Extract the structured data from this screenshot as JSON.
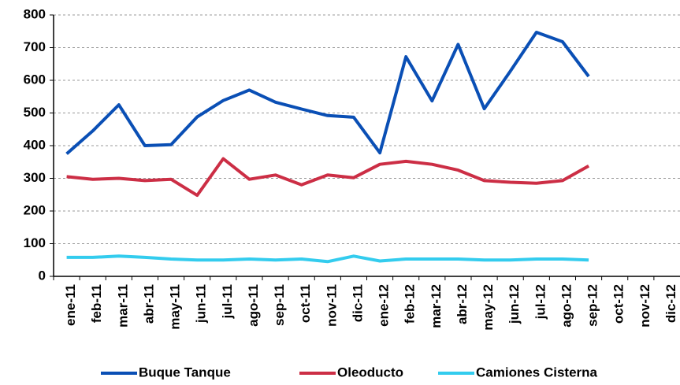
{
  "chart_data": {
    "type": "line",
    "categories": [
      "ene-11",
      "feb-11",
      "mar-11",
      "abr-11",
      "may-11",
      "jun-11",
      "jul-11",
      "ago-11",
      "sep-11",
      "oct-11",
      "nov-11",
      "dic-11",
      "ene-12",
      "feb-12",
      "mar-12",
      "abr-12",
      "may-12",
      "jun-12",
      "jul-12",
      "ago-12",
      "sep-12",
      "oct-12",
      "nov-12",
      "dic-12"
    ],
    "series": [
      {
        "name": "Buque Tanque",
        "color": "#0a4fb5",
        "values": [
          375,
          445,
          525,
          400,
          403,
          488,
          538,
          570,
          533,
          512,
          492,
          487,
          378,
          672,
          537,
          710,
          513,
          628,
          747,
          718,
          612,
          null,
          null,
          null
        ]
      },
      {
        "name": "Oleoducto",
        "color": "#cc2e45",
        "values": [
          305,
          297,
          300,
          293,
          297,
          248,
          360,
          297,
          310,
          280,
          310,
          302,
          343,
          352,
          343,
          325,
          293,
          288,
          285,
          293,
          338,
          null,
          null,
          null
        ]
      },
      {
        "name": "Camiones Cisterna",
        "color": "#33ccee",
        "values": [
          58,
          58,
          62,
          58,
          53,
          50,
          50,
          53,
          50,
          53,
          45,
          62,
          47,
          53,
          53,
          53,
          50,
          50,
          53,
          53,
          50,
          null,
          null,
          null
        ]
      }
    ],
    "ylim": [
      0,
      800
    ],
    "yticks": [
      0,
      100,
      200,
      300,
      400,
      500,
      600,
      700,
      800
    ],
    "grid": true,
    "legend": "bottom"
  }
}
